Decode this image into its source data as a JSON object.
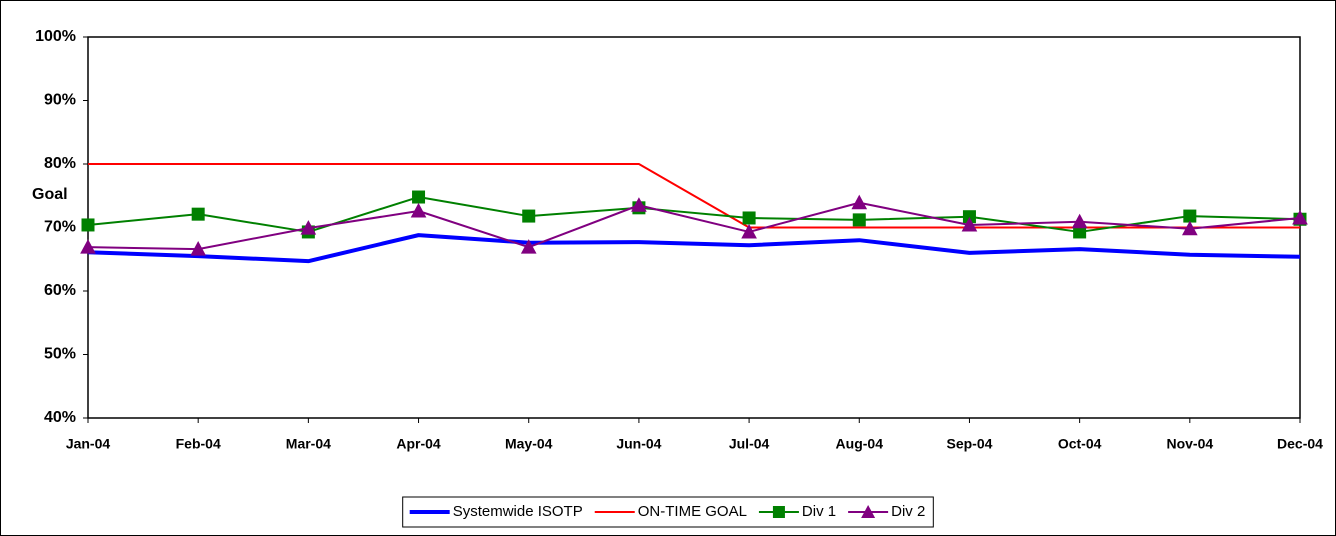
{
  "chart_data": {
    "type": "line",
    "annotation": "Goal",
    "annotation_color": "#ff0000",
    "categories": [
      "Jan-04",
      "Feb-04",
      "Mar-04",
      "Apr-04",
      "May-04",
      "Jun-04",
      "Jul-04",
      "Aug-04",
      "Sep-04",
      "Oct-04",
      "Nov-04",
      "Dec-04"
    ],
    "series": [
      {
        "name": "Systemwide ISOTP",
        "color": "#0000ff",
        "width": 4,
        "marker": "none",
        "values": [
          66.1,
          65.5,
          64.7,
          68.8,
          67.6,
          67.7,
          67.2,
          68.0,
          66.0,
          66.6,
          65.7,
          65.4
        ]
      },
      {
        "name": "ON-TIME GOAL",
        "color": "#ff0000",
        "width": 2,
        "marker": "none",
        "values": [
          80,
          80,
          80,
          80,
          80,
          80,
          70,
          70,
          70,
          70,
          70,
          70
        ]
      },
      {
        "name": "Div 1",
        "color": "#008000",
        "width": 2,
        "marker": "square",
        "values": [
          70.4,
          72.1,
          69.3,
          74.8,
          71.8,
          73.1,
          71.5,
          71.2,
          71.7,
          69.3,
          71.8,
          71.3
        ]
      },
      {
        "name": "Div 2",
        "color": "#800080",
        "width": 2,
        "marker": "triangle",
        "values": [
          66.9,
          66.6,
          69.9,
          72.6,
          66.9,
          73.5,
          69.3,
          73.9,
          70.4,
          70.9,
          69.8,
          71.5
        ]
      }
    ],
    "ylim": [
      40,
      100
    ],
    "yticks": [
      {
        "value": 40,
        "label": "40%"
      },
      {
        "value": 50,
        "label": "50%"
      },
      {
        "value": 60,
        "label": "60%"
      },
      {
        "value": 70,
        "label": "70%"
      },
      {
        "value": 80,
        "label": "80%"
      },
      {
        "value": 90,
        "label": "90%"
      },
      {
        "value": 100,
        "label": "100%"
      }
    ],
    "grid": false,
    "legend": "bottom"
  }
}
